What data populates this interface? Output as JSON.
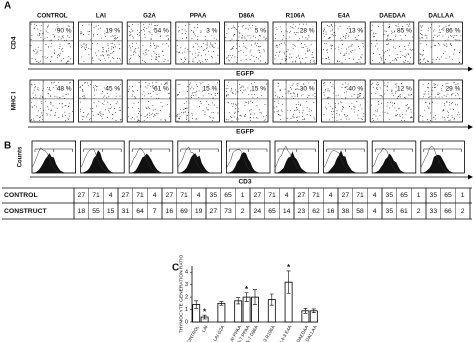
{
  "panel_a": {
    "label": "A",
    "columns": [
      "CONTROL",
      "LAI",
      "G2A",
      "PPAA",
      "D86A",
      "R106A",
      "E4A",
      "DAEDAA",
      "DALLAA"
    ],
    "rows": [
      {
        "y_axis": "CD4",
        "x_axis": "EGFP",
        "percentages": [
          "90 %",
          "19 %",
          "54 %",
          "3 %",
          "5 %",
          "28 %",
          "13 %",
          "85 %",
          "86 %"
        ]
      },
      {
        "y_axis": "MHC I",
        "x_axis": "EGFP",
        "percentages": [
          "48 %",
          "45 %",
          "61 %",
          "15 %",
          "15 %",
          "30 %",
          "40 %",
          "12 %",
          "29 %"
        ]
      }
    ]
  },
  "panel_b": {
    "label": "B",
    "y_axis": "Counts",
    "x_axis": "CD3",
    "table": {
      "row_labels": [
        "CONTROL",
        "CONSTRUCT"
      ],
      "rows": [
        [
          27,
          71,
          4,
          27,
          71,
          4,
          27,
          71,
          4,
          35,
          65,
          1,
          27,
          71,
          4,
          27,
          71,
          4,
          27,
          71,
          4,
          35,
          65,
          1,
          35,
          65,
          1
        ],
        [
          18,
          55,
          15,
          31,
          64,
          7,
          16,
          69,
          19,
          27,
          73,
          2,
          24,
          65,
          14,
          23,
          62,
          16,
          38,
          58,
          4,
          35,
          61,
          2,
          33,
          66,
          2
        ]
      ]
    }
  },
  "panel_c": {
    "label": "C"
  },
  "chart_data": {
    "type": "bar",
    "y_label": "THYMOCYTE GENERATION RATIO",
    "categories": [
      "CONTROL",
      "LAI",
      null,
      "LAI G2A",
      null,
      "LAI PPAA",
      "NA-7 PPAA",
      "NA-7 D86A",
      null,
      "NL4-3 R106A",
      null,
      "NL4-3 E4A",
      null,
      "NA-7 DAEDAA",
      "NA-7 DALLAA"
    ],
    "values": [
      1.4,
      0.4,
      null,
      1.5,
      null,
      1.7,
      2.0,
      2.0,
      null,
      1.8,
      null,
      3.2,
      null,
      0.9,
      0.9
    ],
    "errors": [
      0.3,
      0.15,
      null,
      0.15,
      null,
      0.25,
      0.35,
      0.6,
      null,
      0.45,
      null,
      0.9,
      null,
      0.2,
      0.15
    ],
    "significance_marks": [
      null,
      "*",
      null,
      null,
      null,
      null,
      "*",
      null,
      null,
      null,
      null,
      "*",
      null,
      null,
      null
    ],
    "color": "#ffffff",
    "ylim": [
      0,
      4.5
    ],
    "yticks": [
      0,
      1,
      2,
      3,
      4
    ]
  }
}
